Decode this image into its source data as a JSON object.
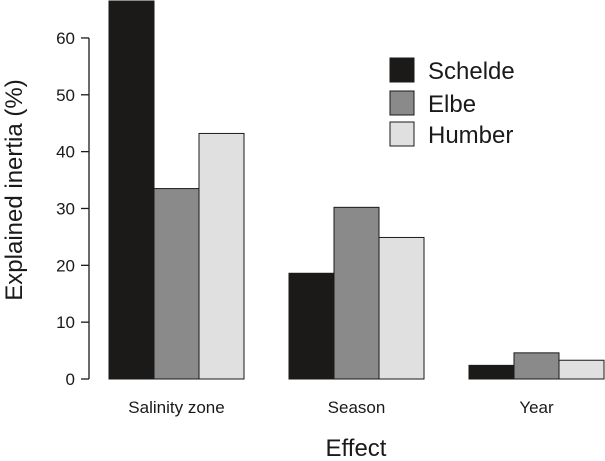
{
  "chart_data": {
    "type": "bar",
    "title": "",
    "xlabel": "Effect",
    "ylabel": "Explained inertia (%)",
    "categories": [
      "Salinity zone",
      "Season",
      "Year"
    ],
    "series": [
      {
        "name": "Schelde",
        "color": "#1c1a18",
        "values": [
          66.5,
          18.6,
          2.4
        ]
      },
      {
        "name": "Elbe",
        "color": "#8a8a8a",
        "values": [
          33.5,
          30.2,
          4.6
        ]
      },
      {
        "name": "Humber",
        "color": "#e0e0e0",
        "values": [
          43.2,
          24.9,
          3.3
        ]
      }
    ],
    "ylim": [
      0,
      66.5
    ],
    "yticks": [
      0,
      10,
      20,
      30,
      40,
      50,
      60
    ],
    "legend_position": "top-right",
    "grid": false
  }
}
